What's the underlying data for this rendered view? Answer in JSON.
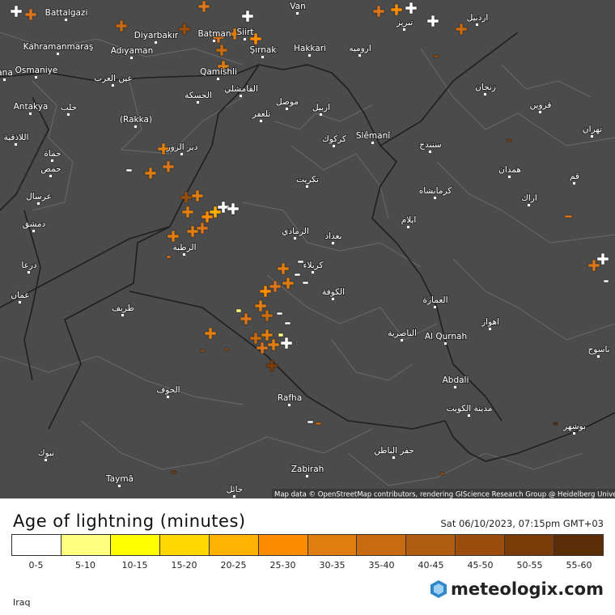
{
  "map": {
    "attribution": "Map data © OpenStreetMap contributors, rendering GIScience Research Group @ Heidelberg University",
    "labels": [
      "Battalgazi",
      "Diyarbakır",
      "Batman",
      "Siirt",
      "Van",
      "Kahramanmaraş",
      "Adıyaman",
      "Şırnak",
      "Hakkari",
      "Osmaniye",
      "ana",
      "Qamishli",
      "Antakya",
      "(Rakka)",
      "Slêmanî",
      "Rafha",
      "Zabirah",
      "Taymā",
      "Abdali",
      "Al Qurnah",
      "حلب",
      "الحسكة",
      "موصل",
      "اربيل",
      "كركوك",
      "تكريت",
      "بغداد",
      "كربلاء",
      "الكوفة",
      "الرمادي",
      "دير الزور",
      "حماة",
      "حمص",
      "دمشق",
      "عمان",
      "الرطبة",
      "طريف",
      "الجوف",
      "تبوك",
      "حائل",
      "الناصرية",
      "العمارة",
      "مدينة الكويت",
      "اهواز",
      "اراك",
      "همدان",
      "كرمانشاه",
      "تبريز",
      "اردبيل",
      "ارومیه",
      "زنجان",
      "قزوين",
      "تهران",
      "سنندج",
      "ايلام",
      "قم",
      "بوشهر",
      "باسوج",
      "حفر الباطن",
      "عين العرب",
      "تلعفر",
      "عرسال",
      "اللاذقية",
      "درعا",
      "القامشلي"
    ]
  },
  "legend": {
    "title": "Age of lightning (minutes)",
    "timestamp": "Sat 06/10/2023, 07:15pm GMT+03",
    "bins": [
      {
        "label": "0-5",
        "color": "#ffffff"
      },
      {
        "label": "5-10",
        "color": "#ffff80"
      },
      {
        "label": "10-15",
        "color": "#ffff00"
      },
      {
        "label": "15-20",
        "color": "#ffd700"
      },
      {
        "label": "20-25",
        "color": "#ffb300"
      },
      {
        "label": "25-30",
        "color": "#ff8c00"
      },
      {
        "label": "30-35",
        "color": "#e07d10"
      },
      {
        "label": "35-40",
        "color": "#c86a10"
      },
      {
        "label": "40-45",
        "color": "#b05c10"
      },
      {
        "label": "45-50",
        "color": "#9a4d0d"
      },
      {
        "label": "50-55",
        "color": "#7a3d0a"
      },
      {
        "label": "55-60",
        "color": "#5c2e08"
      }
    ]
  },
  "footer": {
    "region": "Iraq",
    "brand": "meteologix.com"
  }
}
